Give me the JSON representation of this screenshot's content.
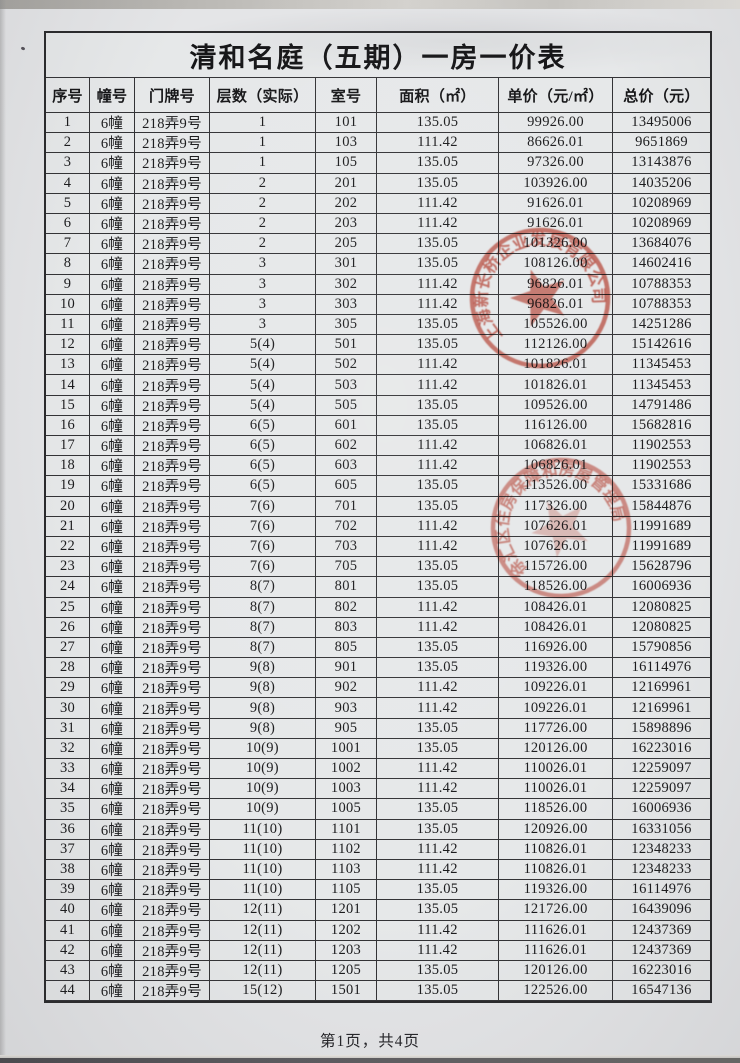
{
  "page": {
    "title": "清和名庭（五期）一房一价表",
    "footer": "第1页，共4页"
  },
  "table": {
    "headers": [
      "序号",
      "幢号",
      "门牌号",
      "层数（实际）",
      "室号",
      "面积（㎡）",
      "单价（元/㎡）",
      "总价（元）"
    ],
    "rows": [
      [
        "1",
        "6幢",
        "218弄9号",
        "1",
        "101",
        "135.05",
        "99926.00",
        "13495006"
      ],
      [
        "2",
        "6幢",
        "218弄9号",
        "1",
        "103",
        "111.42",
        "86626.01",
        "9651869"
      ],
      [
        "3",
        "6幢",
        "218弄9号",
        "1",
        "105",
        "135.05",
        "97326.00",
        "13143876"
      ],
      [
        "4",
        "6幢",
        "218弄9号",
        "2",
        "201",
        "135.05",
        "103926.00",
        "14035206"
      ],
      [
        "5",
        "6幢",
        "218弄9号",
        "2",
        "202",
        "111.42",
        "91626.01",
        "10208969"
      ],
      [
        "6",
        "6幢",
        "218弄9号",
        "2",
        "203",
        "111.42",
        "91626.01",
        "10208969"
      ],
      [
        "7",
        "6幢",
        "218弄9号",
        "2",
        "205",
        "135.05",
        "101326.00",
        "13684076"
      ],
      [
        "8",
        "6幢",
        "218弄9号",
        "3",
        "301",
        "135.05",
        "108126.00",
        "14602416"
      ],
      [
        "9",
        "6幢",
        "218弄9号",
        "3",
        "302",
        "111.42",
        "96826.01",
        "10788353"
      ],
      [
        "10",
        "6幢",
        "218弄9号",
        "3",
        "303",
        "111.42",
        "96826.01",
        "10788353"
      ],
      [
        "11",
        "6幢",
        "218弄9号",
        "3",
        "305",
        "135.05",
        "105526.00",
        "14251286"
      ],
      [
        "12",
        "6幢",
        "218弄9号",
        "5(4)",
        "501",
        "135.05",
        "112126.00",
        "15142616"
      ],
      [
        "13",
        "6幢",
        "218弄9号",
        "5(4)",
        "502",
        "111.42",
        "101826.01",
        "11345453"
      ],
      [
        "14",
        "6幢",
        "218弄9号",
        "5(4)",
        "503",
        "111.42",
        "101826.01",
        "11345453"
      ],
      [
        "15",
        "6幢",
        "218弄9号",
        "5(4)",
        "505",
        "135.05",
        "109526.00",
        "14791486"
      ],
      [
        "16",
        "6幢",
        "218弄9号",
        "6(5)",
        "601",
        "135.05",
        "116126.00",
        "15682816"
      ],
      [
        "17",
        "6幢",
        "218弄9号",
        "6(5)",
        "602",
        "111.42",
        "106826.01",
        "11902553"
      ],
      [
        "18",
        "6幢",
        "218弄9号",
        "6(5)",
        "603",
        "111.42",
        "106826.01",
        "11902553"
      ],
      [
        "19",
        "6幢",
        "218弄9号",
        "6(5)",
        "605",
        "135.05",
        "113526.00",
        "15331686"
      ],
      [
        "20",
        "6幢",
        "218弄9号",
        "7(6)",
        "701",
        "135.05",
        "117326.00",
        "15844876"
      ],
      [
        "21",
        "6幢",
        "218弄9号",
        "7(6)",
        "702",
        "111.42",
        "107626.01",
        "11991689"
      ],
      [
        "22",
        "6幢",
        "218弄9号",
        "7(6)",
        "703",
        "111.42",
        "107626.01",
        "11991689"
      ],
      [
        "23",
        "6幢",
        "218弄9号",
        "7(6)",
        "705",
        "135.05",
        "115726.00",
        "15628796"
      ],
      [
        "24",
        "6幢",
        "218弄9号",
        "8(7)",
        "801",
        "135.05",
        "118526.00",
        "16006936"
      ],
      [
        "25",
        "6幢",
        "218弄9号",
        "8(7)",
        "802",
        "111.42",
        "108426.01",
        "12080825"
      ],
      [
        "26",
        "6幢",
        "218弄9号",
        "8(7)",
        "803",
        "111.42",
        "108426.01",
        "12080825"
      ],
      [
        "27",
        "6幢",
        "218弄9号",
        "8(7)",
        "805",
        "135.05",
        "116926.00",
        "15790856"
      ],
      [
        "28",
        "6幢",
        "218弄9号",
        "9(8)",
        "901",
        "135.05",
        "119326.00",
        "16114976"
      ],
      [
        "29",
        "6幢",
        "218弄9号",
        "9(8)",
        "902",
        "111.42",
        "109226.01",
        "12169961"
      ],
      [
        "30",
        "6幢",
        "218弄9号",
        "9(8)",
        "903",
        "111.42",
        "109226.01",
        "12169961"
      ],
      [
        "31",
        "6幢",
        "218弄9号",
        "9(8)",
        "905",
        "135.05",
        "117726.00",
        "15898896"
      ],
      [
        "32",
        "6幢",
        "218弄9号",
        "10(9)",
        "1001",
        "135.05",
        "120126.00",
        "16223016"
      ],
      [
        "33",
        "6幢",
        "218弄9号",
        "10(9)",
        "1002",
        "111.42",
        "110026.01",
        "12259097"
      ],
      [
        "34",
        "6幢",
        "218弄9号",
        "10(9)",
        "1003",
        "111.42",
        "110026.01",
        "12259097"
      ],
      [
        "35",
        "6幢",
        "218弄9号",
        "10(9)",
        "1005",
        "135.05",
        "118526.00",
        "16006936"
      ],
      [
        "36",
        "6幢",
        "218弄9号",
        "11(10)",
        "1101",
        "135.05",
        "120926.00",
        "16331056"
      ],
      [
        "37",
        "6幢",
        "218弄9号",
        "11(10)",
        "1102",
        "111.42",
        "110826.01",
        "12348233"
      ],
      [
        "38",
        "6幢",
        "218弄9号",
        "11(10)",
        "1103",
        "111.42",
        "110826.01",
        "12348233"
      ],
      [
        "39",
        "6幢",
        "218弄9号",
        "11(10)",
        "1105",
        "135.05",
        "119326.00",
        "16114976"
      ],
      [
        "40",
        "6幢",
        "218弄9号",
        "12(11)",
        "1201",
        "135.05",
        "121726.00",
        "16439096"
      ],
      [
        "41",
        "6幢",
        "218弄9号",
        "12(11)",
        "1202",
        "111.42",
        "111626.01",
        "12437369"
      ],
      [
        "42",
        "6幢",
        "218弄9号",
        "12(11)",
        "1203",
        "111.42",
        "111626.01",
        "12437369"
      ],
      [
        "43",
        "6幢",
        "218弄9号",
        "12(11)",
        "1205",
        "135.05",
        "120126.00",
        "16223016"
      ],
      [
        "44",
        "6幢",
        "218弄9号",
        "15(12)",
        "1501",
        "135.05",
        "122526.00",
        "16547136"
      ]
    ]
  },
  "stamps": [
    {
      "name": "company-seal",
      "text": "上海新长桥企业发展有限公司"
    },
    {
      "name": "housing-authority-seal",
      "text": "徐汇区住房保障和房屋管理局"
    }
  ],
  "colors": {
    "paper": "#e4e5e7",
    "table_line": "#333336",
    "text": "#1b1b1d",
    "stamp_red": "#c94f40"
  }
}
